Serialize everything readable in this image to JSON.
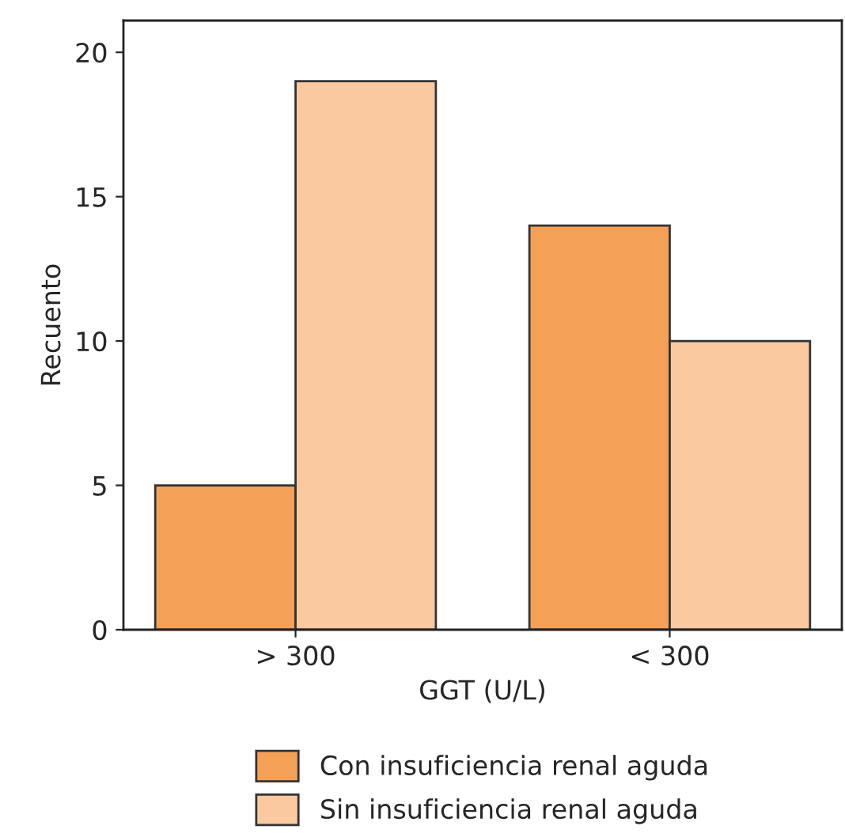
{
  "chart_data": {
    "type": "bar",
    "xlabel": "GGT (U/L)",
    "ylabel": "Recuento",
    "categories": [
      "> 300",
      "< 300"
    ],
    "series": [
      {
        "name": "Con insuficiencia renal aguda",
        "color": "#f5a057",
        "values": [
          5,
          14
        ]
      },
      {
        "name": "Sin insuficiencia renal aguda",
        "color": "#fbc9a0",
        "values": [
          19,
          10
        ]
      }
    ],
    "ylim": [
      0,
      21.1
    ],
    "yticks": [
      0,
      5,
      10,
      15,
      20
    ],
    "grid": false,
    "legend": "bottom"
  }
}
